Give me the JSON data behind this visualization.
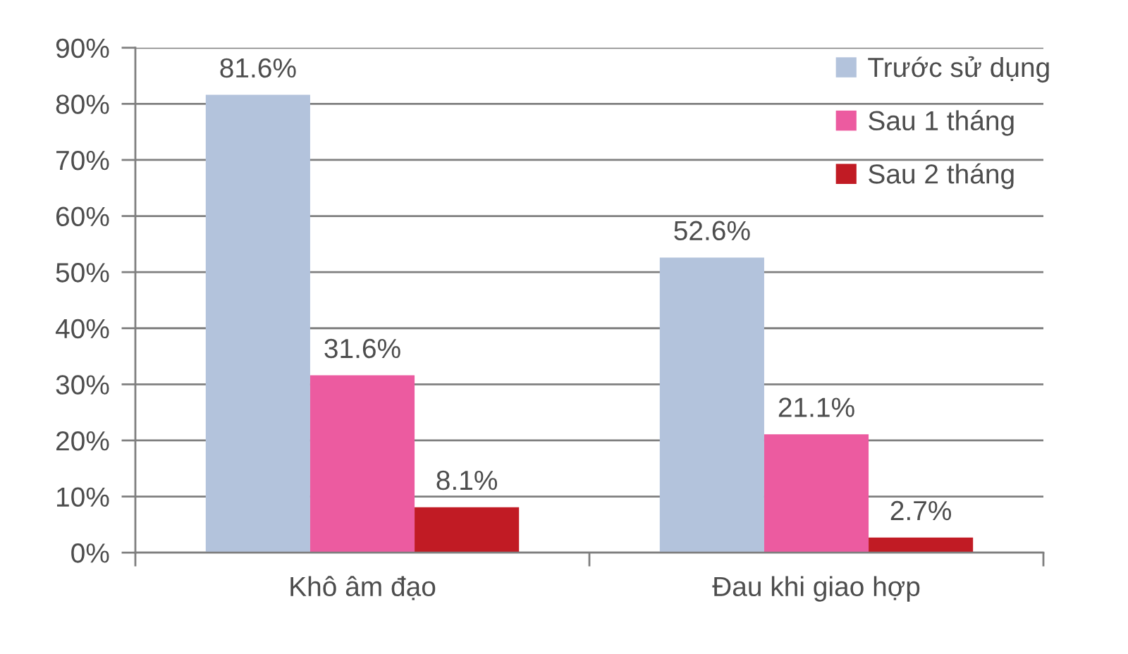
{
  "chart_data": {
    "type": "bar",
    "categories": [
      "Khô âm đạo",
      "Đau khi giao hợp"
    ],
    "series": [
      {
        "name": "Trước sử dụng",
        "color": "#b3c3dc",
        "values": [
          81.6,
          52.6
        ],
        "value_labels": [
          "81.6%",
          "52.6%"
        ]
      },
      {
        "name": "Sau 1 tháng",
        "color": "#ec5ba0",
        "values": [
          31.6,
          21.1
        ],
        "value_labels": [
          "31.6%",
          "21.1%"
        ]
      },
      {
        "name": "Sau 2 tháng",
        "color": "#c11b24",
        "values": [
          8.1,
          2.7
        ],
        "value_labels": [
          "8.1%",
          "2.7%"
        ]
      }
    ],
    "ylim": [
      0,
      90
    ],
    "yticks": [
      {
        "value": 0,
        "label": "0%"
      },
      {
        "value": 10,
        "label": "10%"
      },
      {
        "value": 20,
        "label": "20%"
      },
      {
        "value": 30,
        "label": "30%"
      },
      {
        "value": 40,
        "label": "40%"
      },
      {
        "value": 50,
        "label": "50%"
      },
      {
        "value": 60,
        "label": "60%"
      },
      {
        "value": 70,
        "label": "70%"
      },
      {
        "value": 80,
        "label": "80%"
      },
      {
        "value": 90,
        "label": "90%"
      }
    ],
    "grid": "y",
    "legend": "top right"
  }
}
